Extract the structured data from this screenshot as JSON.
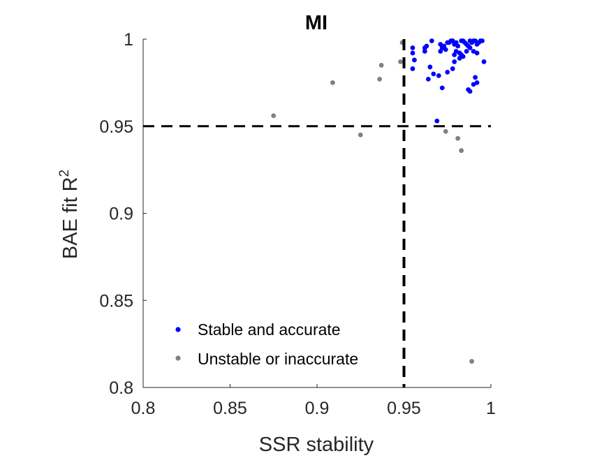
{
  "chart_data": {
    "type": "scatter",
    "title": "MI",
    "xlabel": "SSR stability",
    "ylabel": "BAE fit R",
    "ylabel_superscript": "2",
    "xlim": [
      0.8,
      1
    ],
    "ylim": [
      0.8,
      1
    ],
    "xticks": [
      0.8,
      0.85,
      0.9,
      0.95,
      1
    ],
    "yticks": [
      0.8,
      0.85,
      0.9,
      0.95,
      1
    ],
    "xtick_labels": [
      "0.8",
      "0.85",
      "0.9",
      "0.95",
      "1"
    ],
    "ytick_labels": [
      "0.8",
      "0.85",
      "0.9",
      "0.95",
      "1"
    ],
    "grid": false,
    "legend_position": "bottom-left",
    "thresholds": {
      "x": 0.95,
      "y": 0.95
    },
    "series": [
      {
        "name": "Stable and accurate",
        "color": "#0000ff",
        "points": [
          [
            0.955,
            0.995
          ],
          [
            0.955,
            0.992
          ],
          [
            0.956,
            0.988
          ],
          [
            0.955,
            0.983
          ],
          [
            0.962,
            0.995
          ],
          [
            0.962,
            0.993
          ],
          [
            0.966,
            0.999
          ],
          [
            0.965,
            0.984
          ],
          [
            0.967,
            0.98
          ],
          [
            0.971,
            0.993
          ],
          [
            0.971,
            0.997
          ],
          [
            0.972,
            0.995
          ],
          [
            0.973,
            0.996
          ],
          [
            0.974,
            0.994
          ],
          [
            0.975,
            0.998
          ],
          [
            0.976,
            0.998
          ],
          [
            0.977,
            0.999
          ],
          [
            0.978,
            0.999
          ],
          [
            0.979,
            0.997
          ],
          [
            0.98,
            0.998
          ],
          [
            0.981,
            0.996
          ],
          [
            0.982,
            0.992
          ],
          [
            0.983,
            0.999
          ],
          [
            0.984,
            0.999
          ],
          [
            0.985,
            0.998
          ],
          [
            0.986,
            0.997
          ],
          [
            0.987,
            0.996
          ],
          [
            0.988,
            0.999
          ],
          [
            0.989,
            0.998
          ],
          [
            0.99,
            0.999
          ],
          [
            0.991,
            0.999
          ],
          [
            0.992,
            0.997
          ],
          [
            0.993,
            0.998
          ],
          [
            0.994,
            0.999
          ],
          [
            0.995,
            0.999
          ],
          [
            0.988,
            0.995
          ],
          [
            0.986,
            0.993
          ],
          [
            0.984,
            0.99
          ],
          [
            0.983,
            0.991
          ],
          [
            0.982,
            0.989
          ],
          [
            0.98,
            0.993
          ],
          [
            0.979,
            0.991
          ],
          [
            0.979,
            0.987
          ],
          [
            0.978,
            0.983
          ],
          [
            0.975,
            0.981
          ],
          [
            0.972,
            0.972
          ],
          [
            0.97,
            0.979
          ],
          [
            0.964,
            0.977
          ],
          [
            0.987,
            0.971
          ],
          [
            0.988,
            0.97
          ],
          [
            0.99,
            0.974
          ],
          [
            0.992,
            0.975
          ],
          [
            0.991,
            0.978
          ],
          [
            0.996,
            0.987
          ],
          [
            0.992,
            0.992
          ],
          [
            0.99,
            0.993
          ],
          [
            0.969,
            0.953
          ],
          [
            0.963,
            0.996
          ]
        ]
      },
      {
        "name": "Unstable or inaccurate",
        "color": "#808080",
        "points": [
          [
            0.875,
            0.956
          ],
          [
            0.909,
            0.975
          ],
          [
            0.925,
            0.945
          ],
          [
            0.936,
            0.977
          ],
          [
            0.937,
            0.985
          ],
          [
            0.948,
            0.987
          ],
          [
            0.949,
            0.998
          ],
          [
            0.974,
            0.947
          ],
          [
            0.981,
            0.943
          ],
          [
            0.983,
            0.936
          ],
          [
            0.989,
            0.815
          ]
        ]
      }
    ]
  }
}
